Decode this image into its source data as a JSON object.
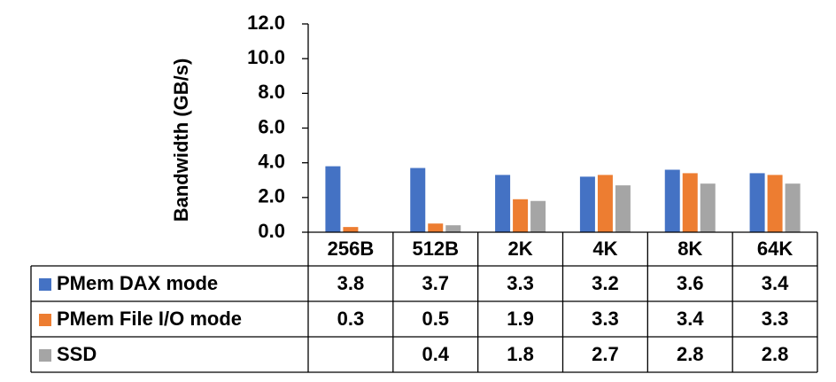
{
  "chart_data": {
    "type": "bar",
    "y_label": "Bandwidth (GB/s)",
    "categories": [
      "256B",
      "512B",
      "2K",
      "4K",
      "8K",
      "64K"
    ],
    "series": [
      {
        "name": "PMem DAX mode",
        "color": "#4472c4",
        "values": [
          3.8,
          3.7,
          3.3,
          3.2,
          3.6,
          3.4
        ]
      },
      {
        "name": "PMem File I/O mode",
        "color": "#ed7d31",
        "values": [
          0.3,
          0.5,
          1.9,
          3.3,
          3.4,
          3.3
        ]
      },
      {
        "name": "SSD",
        "color": "#a5a5a5",
        "values": [
          null,
          0.4,
          1.8,
          2.7,
          2.8,
          2.8
        ]
      }
    ],
    "ylim": [
      0,
      12
    ],
    "yticks": [
      {
        "value": 0,
        "label": "0.0"
      },
      {
        "value": 2,
        "label": "2.0"
      },
      {
        "value": 4,
        "label": "4.0"
      },
      {
        "value": 6,
        "label": "6.0"
      },
      {
        "value": 8,
        "label": "8.0"
      },
      {
        "value": 10,
        "label": "10.0"
      },
      {
        "value": 12,
        "label": "12.0"
      }
    ],
    "data_table": true
  }
}
